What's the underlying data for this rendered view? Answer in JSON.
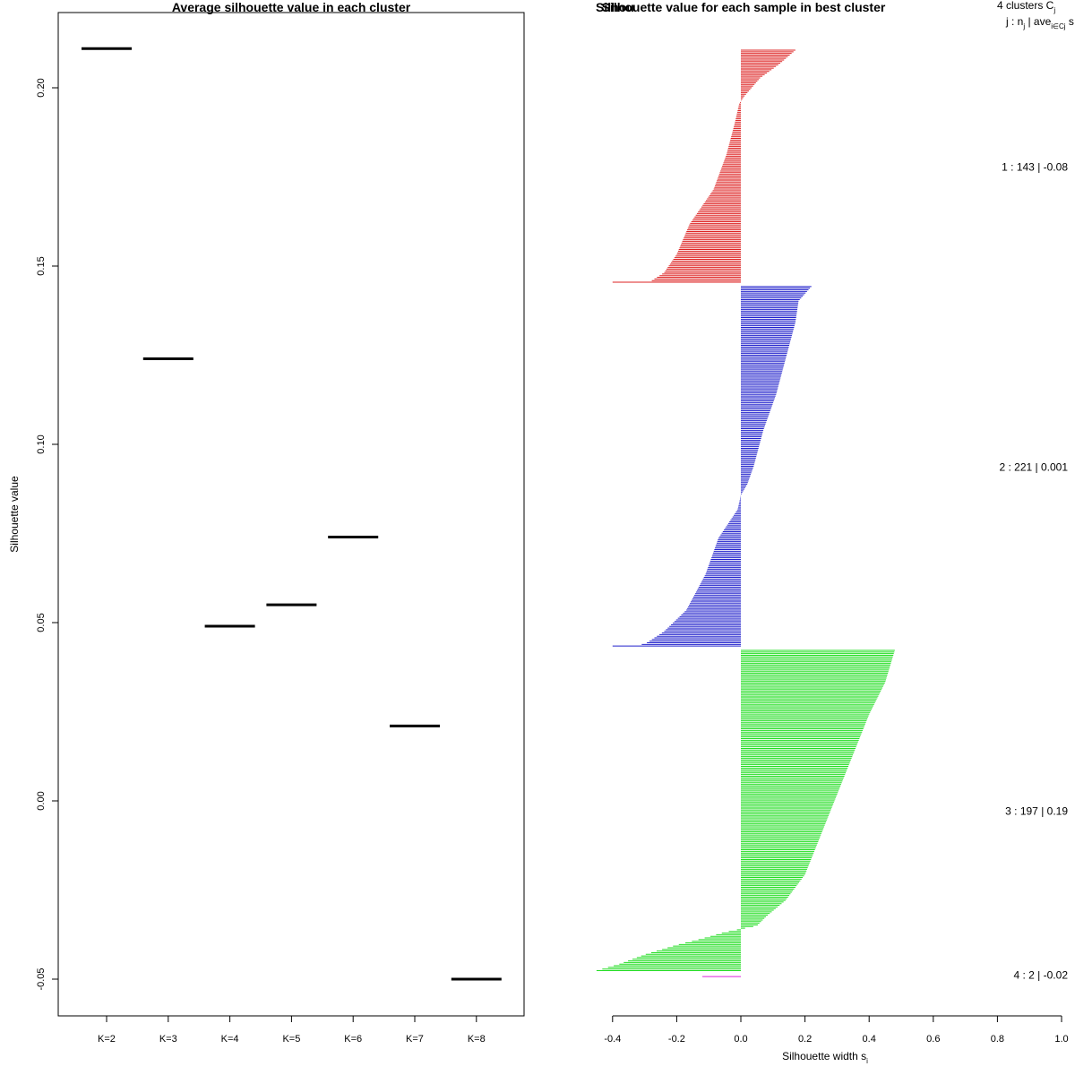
{
  "chart_data": [
    {
      "type": "scatter",
      "title": "Average silhouette value in each cluster",
      "xlabel": "",
      "ylabel": "Silhouette value",
      "categories": [
        "K=2",
        "K=3",
        "K=4",
        "K=5",
        "K=6",
        "K=7",
        "K=8"
      ],
      "values": [
        0.211,
        0.124,
        0.049,
        0.055,
        0.074,
        0.021,
        -0.05
      ],
      "ylim": [
        -0.06,
        0.221
      ],
      "yticks": [
        -0.05,
        0.0,
        0.05,
        0.1,
        0.15,
        0.2
      ],
      "ytick_labels": [
        "-0.05",
        "0.00",
        "0.05",
        "0.10",
        "0.15",
        "0.20"
      ],
      "marker": "horizontal-segment",
      "grid": false
    },
    {
      "type": "bar",
      "orientation": "horizontal",
      "title": "Silhouette value for each sample in best cluster",
      "title_overlap_text": "Silhou",
      "xlabel": "Silhouette width s",
      "xlabel_subscript": "i",
      "xlim": [
        -0.4,
        1.0
      ],
      "xticks": [
        -0.4,
        -0.2,
        0.0,
        0.2,
        0.4,
        0.6,
        0.8,
        1.0
      ],
      "xtick_labels": [
        "-0.4",
        "-0.2",
        "0.0",
        "0.2",
        "0.4",
        "0.6",
        "0.8",
        "1.0"
      ],
      "legend_header": {
        "line1_prefix": "4  clusters  C",
        "line1_sub": "j",
        "line2_prefix": "j :  n",
        "line2_sub1": "j",
        "line2_mid": " | ave",
        "line2_sub2": "i∈Cj",
        "line2_suffix": "  s"
      },
      "clusters": [
        {
          "id": 1,
          "n": 143,
          "avg": -0.08,
          "label": "1 :  143  |  -0.08",
          "color": "#dd2222",
          "profile": [
            [
              0,
              0.17
            ],
            [
              0.06,
              0.12
            ],
            [
              0.12,
              0.06
            ],
            [
              0.2,
              0.01
            ],
            [
              0.23,
              -0.005
            ],
            [
              0.32,
              -0.02
            ],
            [
              0.45,
              -0.045
            ],
            [
              0.6,
              -0.085
            ],
            [
              0.75,
              -0.16
            ],
            [
              0.88,
              -0.2
            ],
            [
              0.96,
              -0.24
            ],
            [
              0.995,
              -0.28
            ],
            [
              1.0,
              -0.4
            ]
          ]
        },
        {
          "id": 2,
          "n": 221,
          "avg": 0.001,
          "label": "2 :  221  |  0.001",
          "color": "#2222cc",
          "profile": [
            [
              0,
              0.22
            ],
            [
              0.04,
              0.18
            ],
            [
              0.1,
              0.17
            ],
            [
              0.2,
              0.14
            ],
            [
              0.3,
              0.11
            ],
            [
              0.4,
              0.07
            ],
            [
              0.5,
              0.04
            ],
            [
              0.55,
              0.02
            ],
            [
              0.58,
              0.0
            ],
            [
              0.62,
              -0.01
            ],
            [
              0.7,
              -0.07
            ],
            [
              0.8,
              -0.11
            ],
            [
              0.9,
              -0.17
            ],
            [
              0.96,
              -0.24
            ],
            [
              0.995,
              -0.3
            ],
            [
              1.0,
              -0.4
            ]
          ]
        },
        {
          "id": 3,
          "n": 197,
          "avg": 0.19,
          "label": "3 :  197  |  0.19",
          "color": "#22dd22",
          "profile": [
            [
              0,
              0.48
            ],
            [
              0.1,
              0.45
            ],
            [
              0.2,
              0.4
            ],
            [
              0.3,
              0.36
            ],
            [
              0.4,
              0.32
            ],
            [
              0.5,
              0.28
            ],
            [
              0.6,
              0.24
            ],
            [
              0.7,
              0.2
            ],
            [
              0.78,
              0.14
            ],
            [
              0.83,
              0.08
            ],
            [
              0.86,
              0.05
            ],
            [
              0.87,
              0.0
            ],
            [
              0.88,
              -0.05
            ],
            [
              0.9,
              -0.12
            ],
            [
              0.92,
              -0.2
            ],
            [
              0.95,
              -0.3
            ],
            [
              0.98,
              -0.38
            ],
            [
              1.0,
              -0.45
            ]
          ]
        },
        {
          "id": 4,
          "n": 2,
          "avg": -0.02,
          "label": "4 :  2  |  -0.02",
          "color": "#dd22dd",
          "profile": [
            [
              0,
              0.0
            ],
            [
              0.5,
              -0.05
            ],
            [
              1.0,
              -0.12
            ]
          ]
        }
      ]
    }
  ]
}
